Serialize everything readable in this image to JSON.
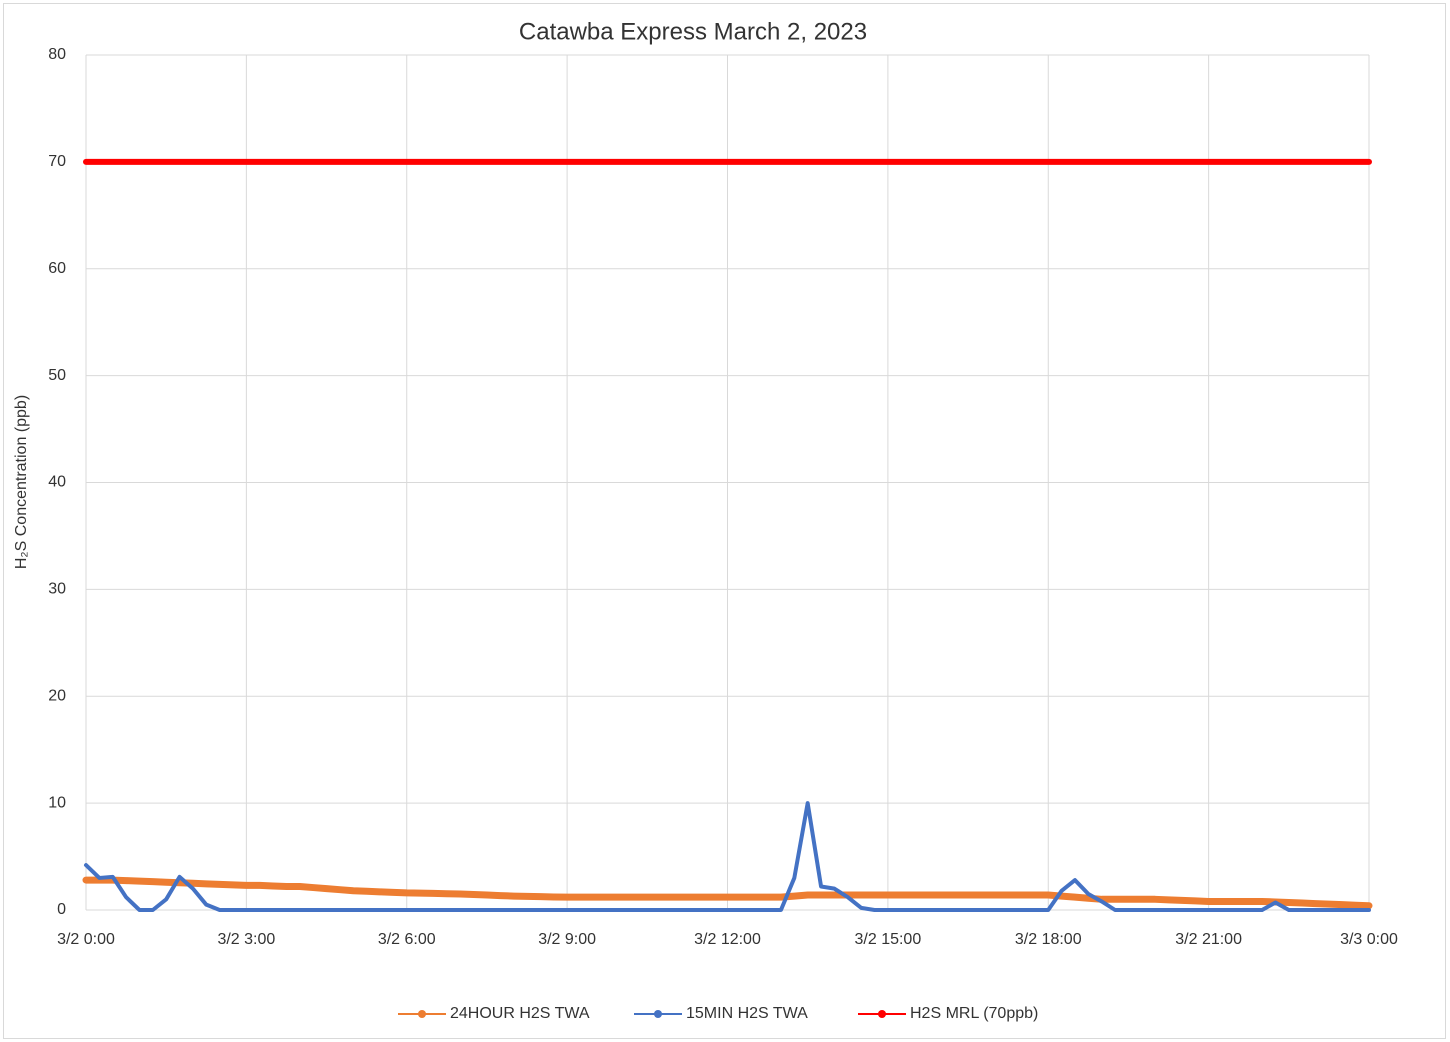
{
  "chart_data": {
    "type": "line",
    "title": "Catawba Express  March 2, 2023",
    "y_label": "H₂S Concentration (ppb)",
    "x": [
      0,
      0.25,
      0.5,
      0.75,
      1,
      1.25,
      1.5,
      1.75,
      2,
      2.25,
      2.5,
      2.75,
      3,
      3.25,
      3.5,
      3.75,
      4,
      4.25,
      4.5,
      4.75,
      5,
      5.25,
      5.5,
      5.75,
      6,
      6.25,
      6.5,
      6.75,
      7,
      7.25,
      7.5,
      7.75,
      8,
      8.25,
      8.5,
      8.75,
      9,
      9.25,
      9.5,
      9.75,
      10,
      10.25,
      10.5,
      10.75,
      11,
      11.25,
      11.5,
      11.75,
      12,
      12.25,
      12.5,
      12.75,
      13,
      13.25,
      13.5,
      13.75,
      14,
      14.25,
      14.5,
      14.75,
      15,
      15.25,
      15.5,
      15.75,
      16,
      16.25,
      16.5,
      16.75,
      17,
      17.25,
      17.5,
      17.75,
      18,
      18.25,
      18.5,
      18.75,
      19,
      19.25,
      19.5,
      19.75,
      20,
      20.25,
      20.5,
      20.75,
      21,
      21.25,
      21.5,
      21.75,
      22,
      22.25,
      22.5,
      22.75,
      23,
      23.25,
      23.5,
      23.75,
      24
    ],
    "series": [
      {
        "name": "24HOUR H2S TWA",
        "color": "#ed7d31",
        "values": [
          2.8,
          2.8,
          2.8,
          2.75,
          2.7,
          2.65,
          2.6,
          2.55,
          2.5,
          2.45,
          2.4,
          2.35,
          2.3,
          2.3,
          2.25,
          2.2,
          2.2,
          2.1,
          2.0,
          1.9,
          1.8,
          1.75,
          1.7,
          1.65,
          1.6,
          1.58,
          1.55,
          1.52,
          1.5,
          1.45,
          1.4,
          1.35,
          1.3,
          1.27,
          1.25,
          1.22,
          1.2,
          1.2,
          1.2,
          1.2,
          1.2,
          1.2,
          1.2,
          1.2,
          1.2,
          1.2,
          1.2,
          1.2,
          1.2,
          1.2,
          1.2,
          1.2,
          1.2,
          1.3,
          1.4,
          1.4,
          1.4,
          1.4,
          1.4,
          1.4,
          1.4,
          1.4,
          1.4,
          1.4,
          1.4,
          1.4,
          1.4,
          1.4,
          1.4,
          1.4,
          1.4,
          1.4,
          1.4,
          1.3,
          1.2,
          1.1,
          1.0,
          1.0,
          1.0,
          1.0,
          1.0,
          0.95,
          0.9,
          0.85,
          0.8,
          0.8,
          0.8,
          0.8,
          0.8,
          0.75,
          0.7,
          0.65,
          0.6,
          0.55,
          0.5,
          0.45,
          0.4
        ]
      },
      {
        "name": "15MIN H2S TWA",
        "color": "#4472c4",
        "values": [
          4.2,
          3.0,
          3.1,
          1.2,
          0,
          0,
          1.0,
          3.1,
          2.0,
          0.5,
          0,
          0,
          0,
          0,
          0,
          0,
          0,
          0,
          0,
          0,
          0,
          0,
          0,
          0,
          0,
          0,
          0,
          0,
          0,
          0,
          0,
          0,
          0,
          0,
          0,
          0,
          0,
          0,
          0,
          0,
          0,
          0,
          0,
          0,
          0,
          0,
          0,
          0,
          0,
          0,
          0,
          0,
          0,
          3,
          10,
          2.2,
          2.0,
          1.2,
          0.2,
          0,
          0,
          0,
          0,
          0,
          0,
          0,
          0,
          0,
          0,
          0,
          0,
          0,
          0,
          1.8,
          2.8,
          1.5,
          0.8,
          0,
          0,
          0,
          0,
          0,
          0,
          0,
          0,
          0,
          0,
          0,
          0,
          0.7,
          0,
          0,
          0,
          0,
          0,
          0,
          0
        ]
      },
      {
        "name": "H2S MRL (70ppb)",
        "color": "#ff0000",
        "values": [
          70,
          70,
          70,
          70,
          70,
          70,
          70,
          70,
          70,
          70,
          70,
          70,
          70,
          70,
          70,
          70,
          70,
          70,
          70,
          70,
          70,
          70,
          70,
          70,
          70,
          70,
          70,
          70,
          70,
          70,
          70,
          70,
          70,
          70,
          70,
          70,
          70,
          70,
          70,
          70,
          70,
          70,
          70,
          70,
          70,
          70,
          70,
          70,
          70,
          70,
          70,
          70,
          70,
          70,
          70,
          70,
          70,
          70,
          70,
          70,
          70,
          70,
          70,
          70,
          70,
          70,
          70,
          70,
          70,
          70,
          70,
          70,
          70,
          70,
          70,
          70,
          70,
          70,
          70,
          70,
          70,
          70,
          70,
          70,
          70,
          70,
          70,
          70,
          70,
          70,
          70,
          70,
          70,
          70,
          70,
          70,
          70
        ]
      }
    ],
    "xlim": [
      0,
      24
    ],
    "xticks": [
      {
        "value": 0,
        "label": "3/2 0:00"
      },
      {
        "value": 3,
        "label": "3/2 3:00"
      },
      {
        "value": 6,
        "label": "3/2 6:00"
      },
      {
        "value": 9,
        "label": "3/2 9:00"
      },
      {
        "value": 12,
        "label": "3/2 12:00"
      },
      {
        "value": 15,
        "label": "3/2 15:00"
      },
      {
        "value": 18,
        "label": "3/2 18:00"
      },
      {
        "value": 21,
        "label": "3/2 21:00"
      },
      {
        "value": 24,
        "label": "3/3 0:00"
      }
    ],
    "ylim": [
      0,
      80
    ],
    "yticks": [
      0,
      10,
      20,
      30,
      40,
      50,
      60,
      70,
      80
    ],
    "grid": true,
    "legend": "bottom"
  }
}
